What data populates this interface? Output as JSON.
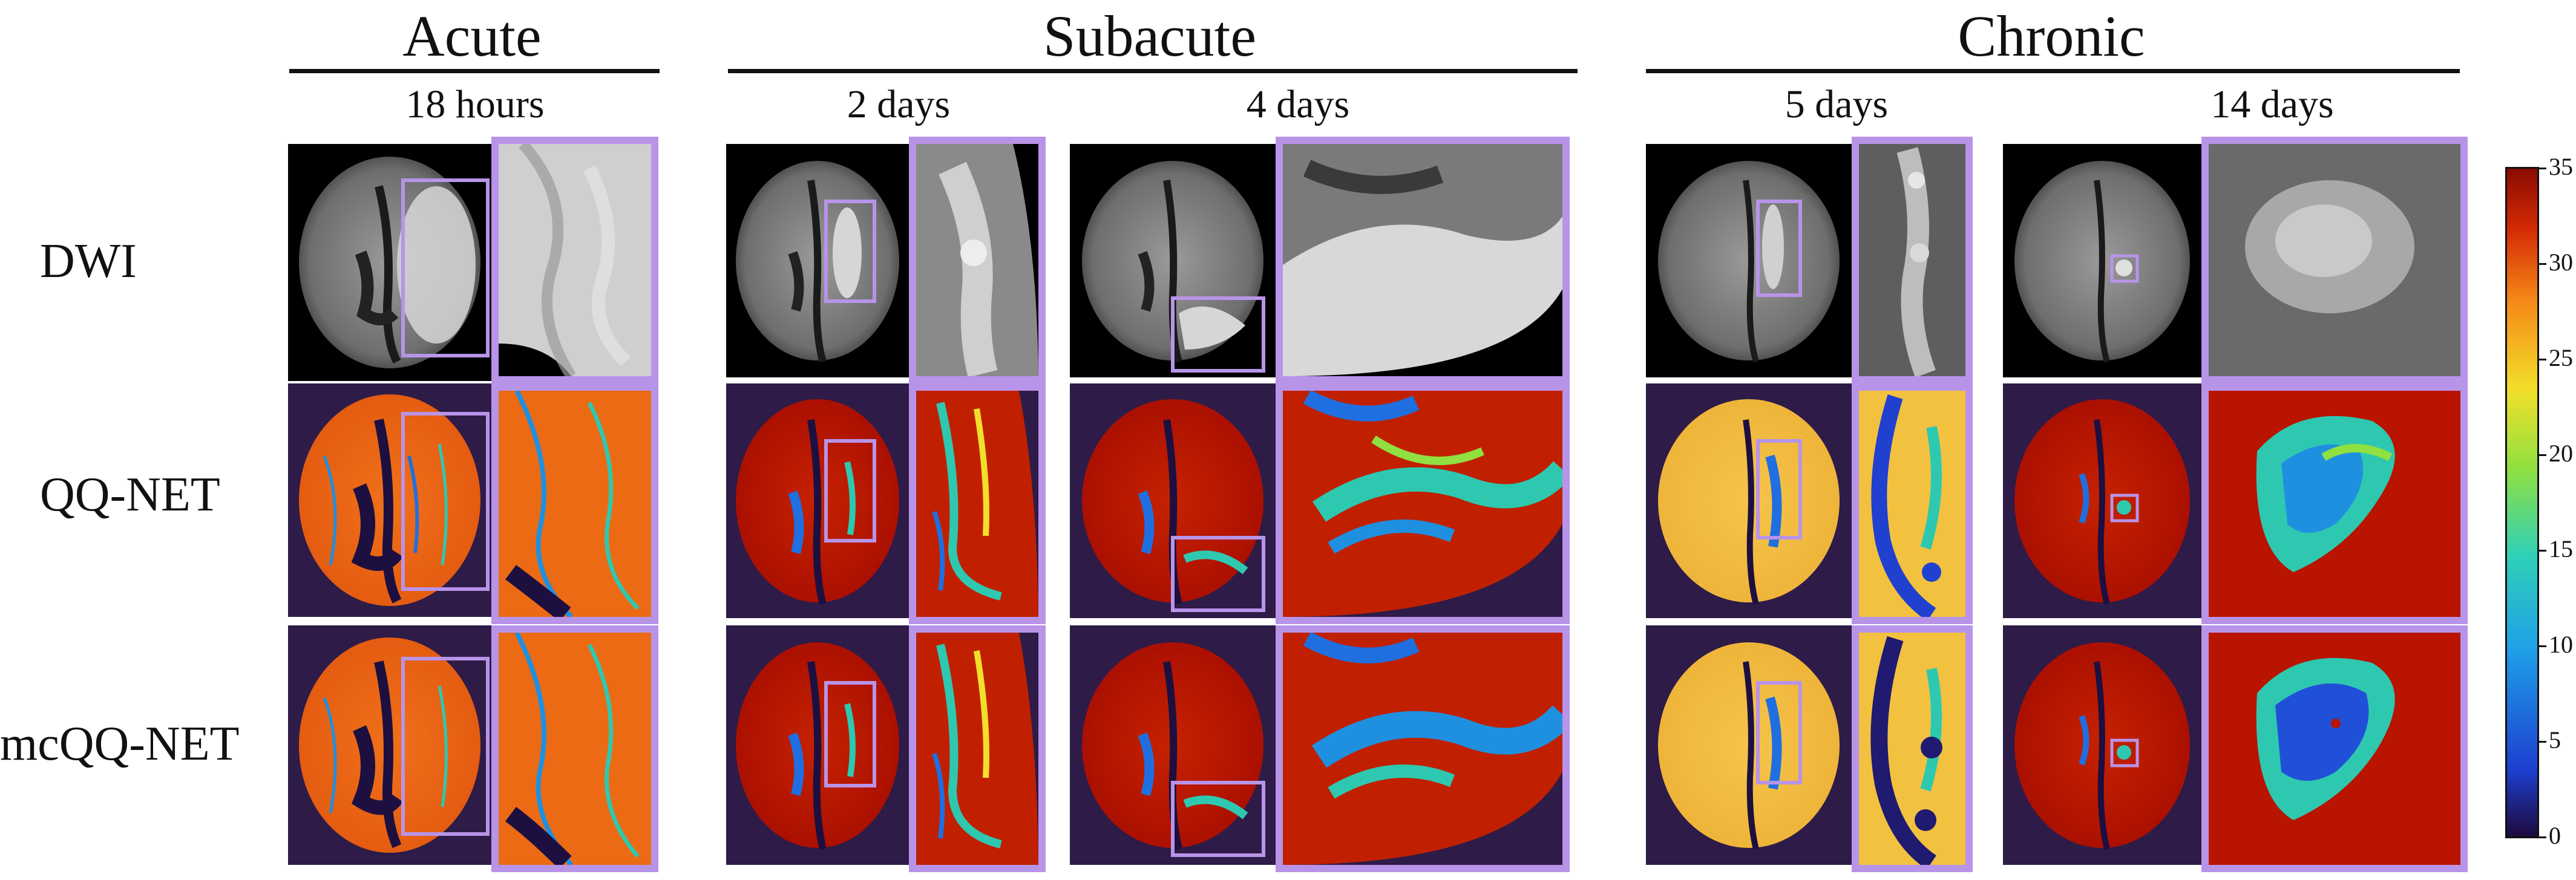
{
  "phases": [
    {
      "id": "acute",
      "label": "Acute",
      "timepoints": [
        "18 hours"
      ]
    },
    {
      "id": "subacute",
      "label": "Subacute",
      "timepoints": [
        "2 days",
        "4 days"
      ]
    },
    {
      "id": "chronic",
      "label": "Chronic",
      "timepoints": [
        "5 days",
        "14 days"
      ]
    }
  ],
  "rows": [
    "DWI",
    "QQ-NET",
    "mcQQ-NET"
  ],
  "colorbar": {
    "min": 0,
    "max": 35,
    "ticks": [
      "35",
      "30",
      "25",
      "20",
      "15",
      "10",
      "5",
      "0"
    ],
    "colormap": "jet"
  },
  "colors": {
    "zoom_border": "#b894e8",
    "map_background": "#2e1b48",
    "dwi_background": "#000000"
  }
}
